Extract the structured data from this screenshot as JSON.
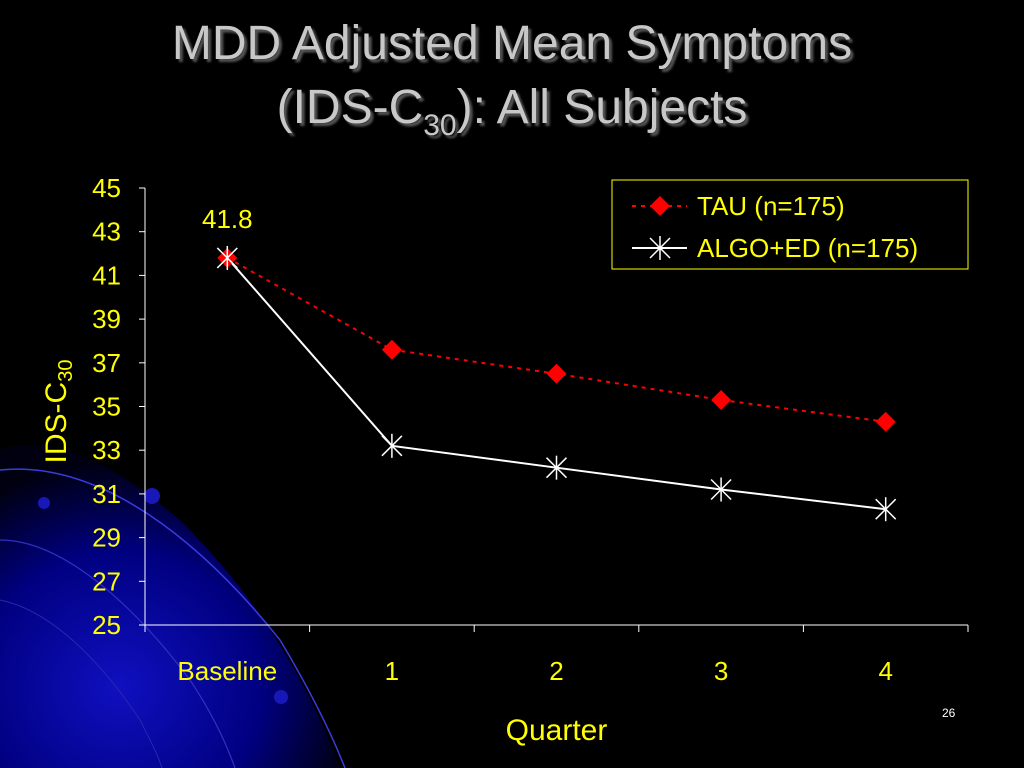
{
  "slide": {
    "title_line1": "MDD Adjusted Mean Symptoms",
    "title_line2_before": "(IDS-C",
    "title_line2_sub": "30",
    "title_line2_after": "): All Subjects",
    "slide_number": "26"
  },
  "colors": {
    "background": "#000000",
    "title": "#c8c8c8",
    "axis_text": "#ffff00",
    "tau_series": "#ff0000",
    "algo_series": "#ffffff",
    "legend_border": "#ffff00",
    "decoration": "#0000aa"
  },
  "chart_data": {
    "type": "line",
    "categories": [
      "Baseline",
      "1",
      "2",
      "3",
      "4"
    ],
    "xlabel": "Quarter",
    "ylabel_main": "IDS-C",
    "ylabel_sub": "30",
    "ylim": [
      25,
      45
    ],
    "yticks": [
      25,
      27,
      29,
      31,
      33,
      35,
      37,
      39,
      41,
      43,
      45
    ],
    "grid": false,
    "legend_position": "top-right",
    "series": [
      {
        "name": "TAU (n=175)",
        "values": [
          41.8,
          37.6,
          36.5,
          35.3,
          34.3
        ],
        "marker": "diamond",
        "line": "dotted",
        "color": "#ff0000"
      },
      {
        "name": "ALGO+ED (n=175)",
        "values": [
          41.8,
          33.2,
          32.2,
          31.2,
          30.3
        ],
        "marker": "asterisk",
        "line": "solid",
        "color": "#ffffff"
      }
    ],
    "annotations": [
      {
        "text": "41.8",
        "category": "Baseline",
        "value": 41.8
      }
    ]
  }
}
